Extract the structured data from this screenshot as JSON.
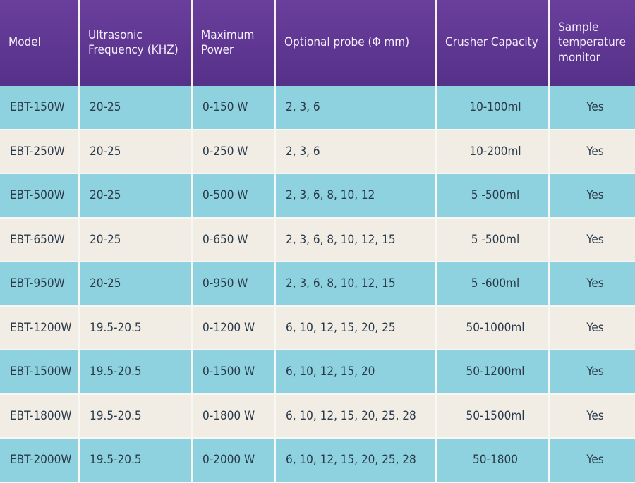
{
  "table": {
    "header": [
      "Model",
      "Ultrasonic Frequency (KHZ)",
      "Maximum Power",
      "Optional probe (Φ mm)",
      "Crusher Capacity",
      "Sample temperature monitor"
    ],
    "rows": [
      [
        "EBT-150W",
        "20-25",
        "0-150 W",
        "2, 3, 6",
        "10-100ml",
        "Yes"
      ],
      [
        "EBT-250W",
        "20-25",
        "0-250 W",
        "2, 3, 6",
        "10-200ml",
        "Yes"
      ],
      [
        "EBT-500W",
        "20-25",
        "0-500 W",
        "2, 3, 6, 8, 10, 12",
        "5 -500ml",
        "Yes"
      ],
      [
        "EBT-650W",
        "20-25",
        "0-650 W",
        "2, 3, 6, 8, 10, 12, 15",
        "5 -500ml",
        "Yes"
      ],
      [
        "EBT-950W",
        "20-25",
        "0-950 W",
        "2, 3, 6, 8, 10, 12, 15",
        "5 -600ml",
        "Yes"
      ],
      [
        "EBT-1200W",
        "19.5-20.5",
        "0-1200 W",
        "6, 10, 12, 15, 20, 25",
        "50-1000ml",
        "Yes"
      ],
      [
        "EBT-1500W",
        "19.5-20.5",
        "0-1500 W",
        "6, 10, 12, 15, 20",
        "50-1200ml",
        "Yes"
      ],
      [
        "EBT-1800W",
        "19.5-20.5",
        "0-1800 W",
        "6, 10, 12, 15, 20, 25, 28",
        "50-1500ml",
        "Yes"
      ],
      [
        "EBT-2000W",
        "19.5-20.5",
        "0-2000 W",
        "6, 10, 12, 15, 20, 25, 28",
        "50-1800",
        "Yes"
      ]
    ]
  }
}
